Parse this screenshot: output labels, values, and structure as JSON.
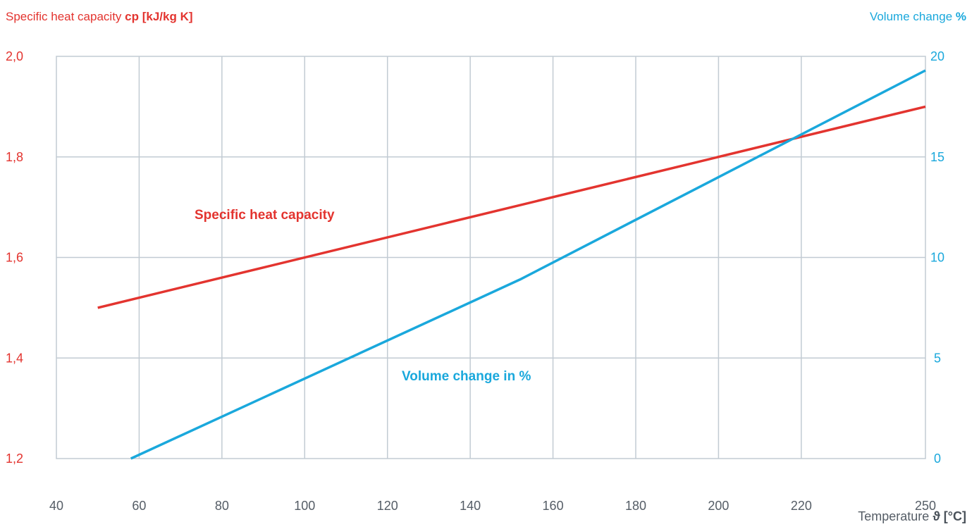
{
  "titles": {
    "left_prefix": "Specific heat capacity ",
    "left_unit": "cp [kJ/kg K]",
    "right_prefix": "Volume change ",
    "right_unit": "%",
    "x_prefix": "Temperature ",
    "x_unit": "ϑ [°C]"
  },
  "colors": {
    "heat": "#e3342f",
    "volume": "#1aa8dc",
    "grid": "#c2cbd3",
    "tick": "#555d66"
  },
  "chart_data": {
    "type": "line",
    "xlim": [
      40,
      250
    ],
    "x_ticks": [
      "40",
      "60",
      "80",
      "100",
      "120",
      "140",
      "160",
      "180",
      "200",
      "220",
      "250"
    ],
    "x_tick_values": [
      40,
      60,
      80,
      100,
      120,
      140,
      160,
      180,
      200,
      220,
      250
    ],
    "y_left": {
      "lim": [
        1.2,
        2.0
      ],
      "ticks": [
        "1,2",
        "1,4",
        "1,6",
        "1,8",
        "2,0"
      ],
      "tick_values": [
        1.2,
        1.4,
        1.6,
        1.8,
        2.0
      ]
    },
    "y_right": {
      "lim": [
        0,
        20
      ],
      "ticks": [
        "0",
        "5",
        "10",
        "15",
        "20"
      ],
      "tick_values": [
        0,
        5,
        10,
        15,
        20
      ]
    },
    "grid": true,
    "series": [
      {
        "name": "Specific heat capacity",
        "axis": "left",
        "x": [
          50,
          250
        ],
        "y": [
          1.5,
          1.9
        ]
      },
      {
        "name": "Volume change in %",
        "axis": "right",
        "x": [
          58,
          152,
          250
        ],
        "y": [
          0,
          8.9,
          19.3
        ]
      }
    ]
  }
}
